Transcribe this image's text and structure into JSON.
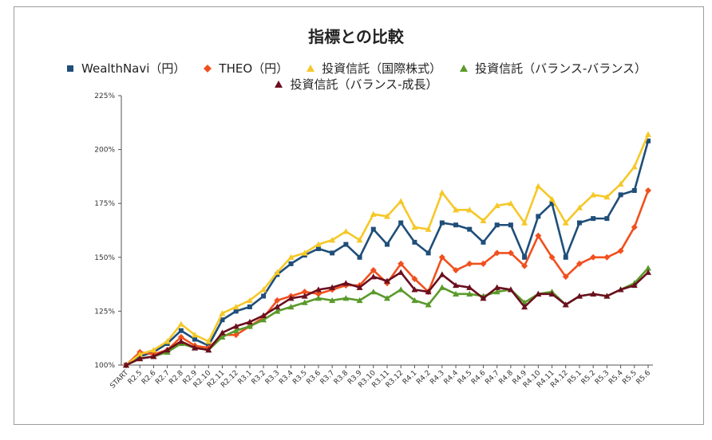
{
  "chart_data": {
    "type": "line",
    "title": "指標との比較",
    "xlabel": "",
    "ylabel": "",
    "ylim": [
      100,
      225
    ],
    "yticks": [
      "100%",
      "125%",
      "150%",
      "175%",
      "200%",
      "225%"
    ],
    "grid": false,
    "legend_placement": "top",
    "categories": [
      "START",
      "R2.5",
      "R2.6",
      "R2.7",
      "R2.8",
      "R2.9",
      "R2.10",
      "R2.11",
      "R2.12",
      "R3.1",
      "R3.2",
      "R3.3",
      "R3.4",
      "R3.5",
      "R3.6",
      "R3.7",
      "R3.8",
      "R3.9",
      "R3.10",
      "R3.11",
      "R3.12",
      "R4.1",
      "R4.2",
      "R4.3",
      "R4.4",
      "R4.5",
      "R4.6",
      "R4.7",
      "R4.8",
      "R4.9",
      "R4.10",
      "R4.11",
      "R4.12",
      "R5.1",
      "R5.2",
      "R5.3",
      "R5.4",
      "R5.5",
      "R5.6"
    ],
    "series": [
      {
        "name": "WealthNavi（円）",
        "color": "#1f4e79",
        "marker": "square",
        "values": [
          100,
          104,
          106,
          110,
          116,
          112,
          109,
          121,
          125,
          127,
          132,
          142,
          147,
          151,
          154,
          152,
          156,
          150,
          163,
          156,
          166,
          157,
          152,
          166,
          165,
          163,
          157,
          165,
          165,
          150,
          169,
          175,
          150,
          166,
          168,
          168,
          179,
          181,
          204
        ]
      },
      {
        "name": "THEO（円）",
        "color": "#f0501e",
        "marker": "diamond",
        "values": [
          100,
          106,
          105,
          107,
          113,
          109,
          108,
          114,
          114,
          118,
          122,
          130,
          132,
          134,
          133,
          135,
          137,
          137,
          144,
          138,
          147,
          140,
          134,
          150,
          144,
          147,
          147,
          152,
          152,
          146,
          160,
          150,
          141,
          147,
          150,
          150,
          153,
          164,
          181
        ]
      },
      {
        "name": "投資信託（国際株式）",
        "color": "#f5c828",
        "marker": "triangle",
        "values": [
          100,
          105,
          107,
          111,
          119,
          114,
          111,
          124,
          127,
          130,
          135,
          143,
          150,
          152,
          156,
          158,
          162,
          158,
          170,
          169,
          176,
          164,
          163,
          180,
          172,
          172,
          167,
          174,
          175,
          166,
          183,
          177,
          166,
          173,
          179,
          178,
          184,
          192,
          207
        ]
      },
      {
        "name": "投資信託（バランス-バランス）",
        "color": "#5a9a2a",
        "marker": "triangle",
        "values": [
          100,
          103,
          104,
          106,
          110,
          108,
          107,
          113,
          116,
          118,
          121,
          125,
          127,
          129,
          131,
          130,
          131,
          130,
          134,
          131,
          135,
          130,
          128,
          136,
          133,
          133,
          132,
          134,
          135,
          129,
          133,
          134,
          128,
          132,
          133,
          132,
          135,
          138,
          145
        ]
      },
      {
        "name": "投資信託（バランス-成長）",
        "color": "#6b0f1f",
        "marker": "triangle",
        "values": [
          100,
          103,
          104,
          107,
          111,
          108,
          107,
          115,
          118,
          120,
          123,
          127,
          131,
          132,
          135,
          136,
          138,
          136,
          141,
          139,
          143,
          135,
          134,
          142,
          137,
          136,
          131,
          136,
          135,
          127,
          133,
          133,
          128,
          132,
          133,
          132,
          135,
          137,
          143
        ]
      }
    ]
  }
}
